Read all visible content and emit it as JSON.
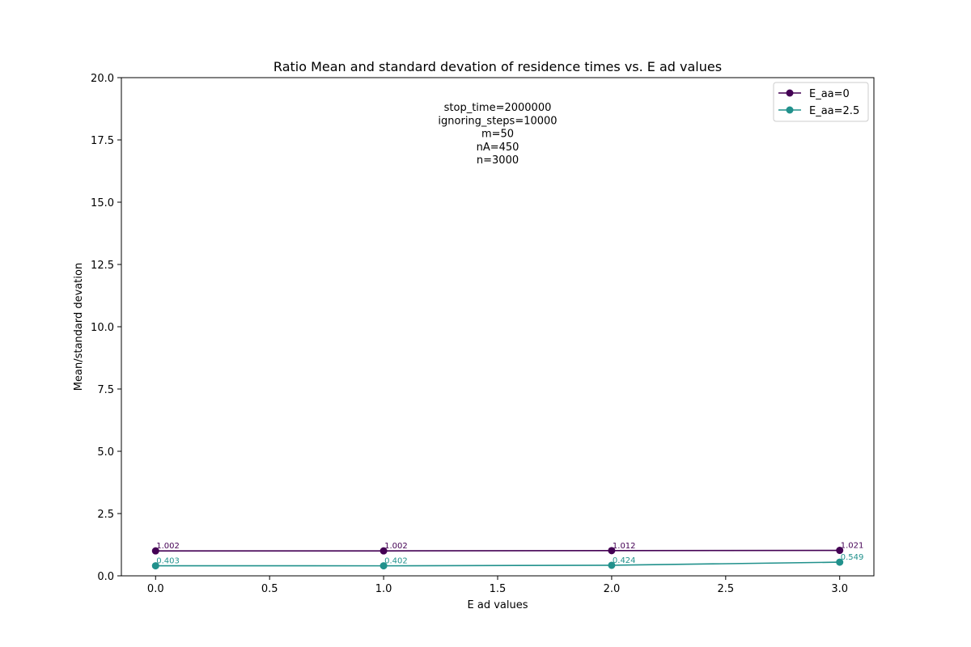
{
  "chart_data": {
    "type": "line",
    "title": "Ratio Mean and standard devation of residence times vs. E ad values",
    "xlabel": "E ad values",
    "ylabel": "Mean/standard devation",
    "x": [
      0.0,
      1.0,
      2.0,
      3.0
    ],
    "xlim": [
      -0.15,
      3.15
    ],
    "ylim": [
      0,
      20
    ],
    "xticks": [
      "0.0",
      "0.5",
      "1.0",
      "1.5",
      "2.0",
      "2.5",
      "3.0"
    ],
    "yticks": [
      "0.0",
      "2.5",
      "5.0",
      "7.5",
      "10.0",
      "12.5",
      "15.0",
      "17.5",
      "20.0"
    ],
    "grid": false,
    "legend_position": "top-right",
    "series": [
      {
        "name": "E_aa=0",
        "color": "#440154",
        "values": [
          1.002,
          1.002,
          1.012,
          1.021
        ],
        "labels": [
          "1.002",
          "1.002",
          "1.012",
          "1.021"
        ]
      },
      {
        "name": "E_aa=2.5",
        "color": "#21918c",
        "values": [
          0.403,
          0.402,
          0.424,
          0.549
        ],
        "labels": [
          "0.403",
          "0.402",
          "0.424",
          "0.549"
        ]
      }
    ],
    "annotation_lines": [
      "stop_time=2000000",
      "ignoring_steps=10000",
      "m=50",
      "nA=450",
      "n=3000"
    ]
  }
}
